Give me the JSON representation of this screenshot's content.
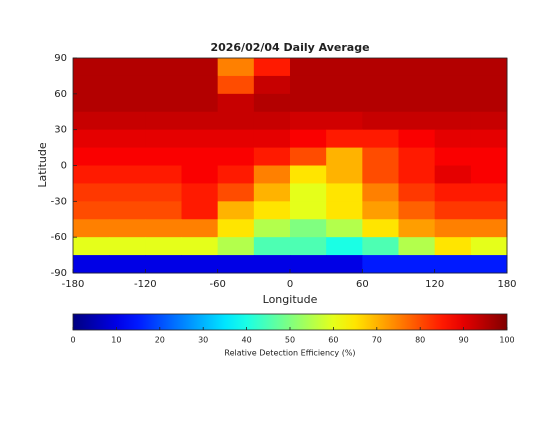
{
  "chart_data": {
    "type": "heatmap",
    "title": "2026/02/04 Daily Average",
    "xlabel": "Longitude",
    "ylabel": "Latitude",
    "x_bins": [
      -180,
      -150,
      -120,
      -90,
      -60,
      -30,
      0,
      30,
      60,
      90,
      120,
      150,
      180
    ],
    "y_bins": [
      90,
      75,
      60,
      45,
      30,
      15,
      0,
      -15,
      -30,
      -45,
      -60,
      -75,
      -90
    ],
    "values": [
      [
        95,
        95,
        95,
        95,
        75,
        85,
        95,
        95,
        95,
        95,
        95,
        95
      ],
      [
        95,
        95,
        95,
        95,
        80,
        93,
        95,
        95,
        95,
        95,
        95,
        95
      ],
      [
        95,
        95,
        95,
        95,
        93,
        95,
        95,
        95,
        95,
        95,
        95,
        95
      ],
      [
        93,
        93,
        93,
        93,
        93,
        93,
        92,
        92,
        93,
        93,
        93,
        93
      ],
      [
        90,
        90,
        90,
        90,
        90,
        90,
        88,
        85,
        85,
        88,
        90,
        90
      ],
      [
        88,
        88,
        88,
        88,
        88,
        85,
        80,
        70,
        80,
        85,
        88,
        88
      ],
      [
        85,
        85,
        85,
        88,
        85,
        75,
        65,
        70,
        80,
        85,
        90,
        88
      ],
      [
        82,
        82,
        82,
        85,
        80,
        70,
        60,
        65,
        75,
        82,
        85,
        85
      ],
      [
        80,
        80,
        80,
        85,
        70,
        65,
        60,
        65,
        72,
        78,
        82,
        82
      ],
      [
        75,
        75,
        75,
        75,
        65,
        55,
        50,
        55,
        65,
        72,
        75,
        75
      ],
      [
        60,
        60,
        60,
        60,
        55,
        45,
        45,
        40,
        45,
        55,
        65,
        60
      ],
      [
        10,
        10,
        10,
        10,
        10,
        10,
        10,
        10,
        15,
        15,
        15,
        15
      ]
    ],
    "xlim": [
      -180,
      180
    ],
    "ylim": [
      -90,
      90
    ],
    "xticks": [
      -180,
      -120,
      -60,
      0,
      60,
      120,
      180
    ],
    "yticks": [
      -90,
      -60,
      -30,
      0,
      30,
      60,
      90
    ],
    "colormap": "jet",
    "colorbar": {
      "label": "Relative Detection Efficiency (%)",
      "lim": [
        0,
        100
      ],
      "ticks": [
        0,
        10,
        20,
        30,
        40,
        50,
        60,
        70,
        80,
        90,
        100
      ]
    }
  }
}
